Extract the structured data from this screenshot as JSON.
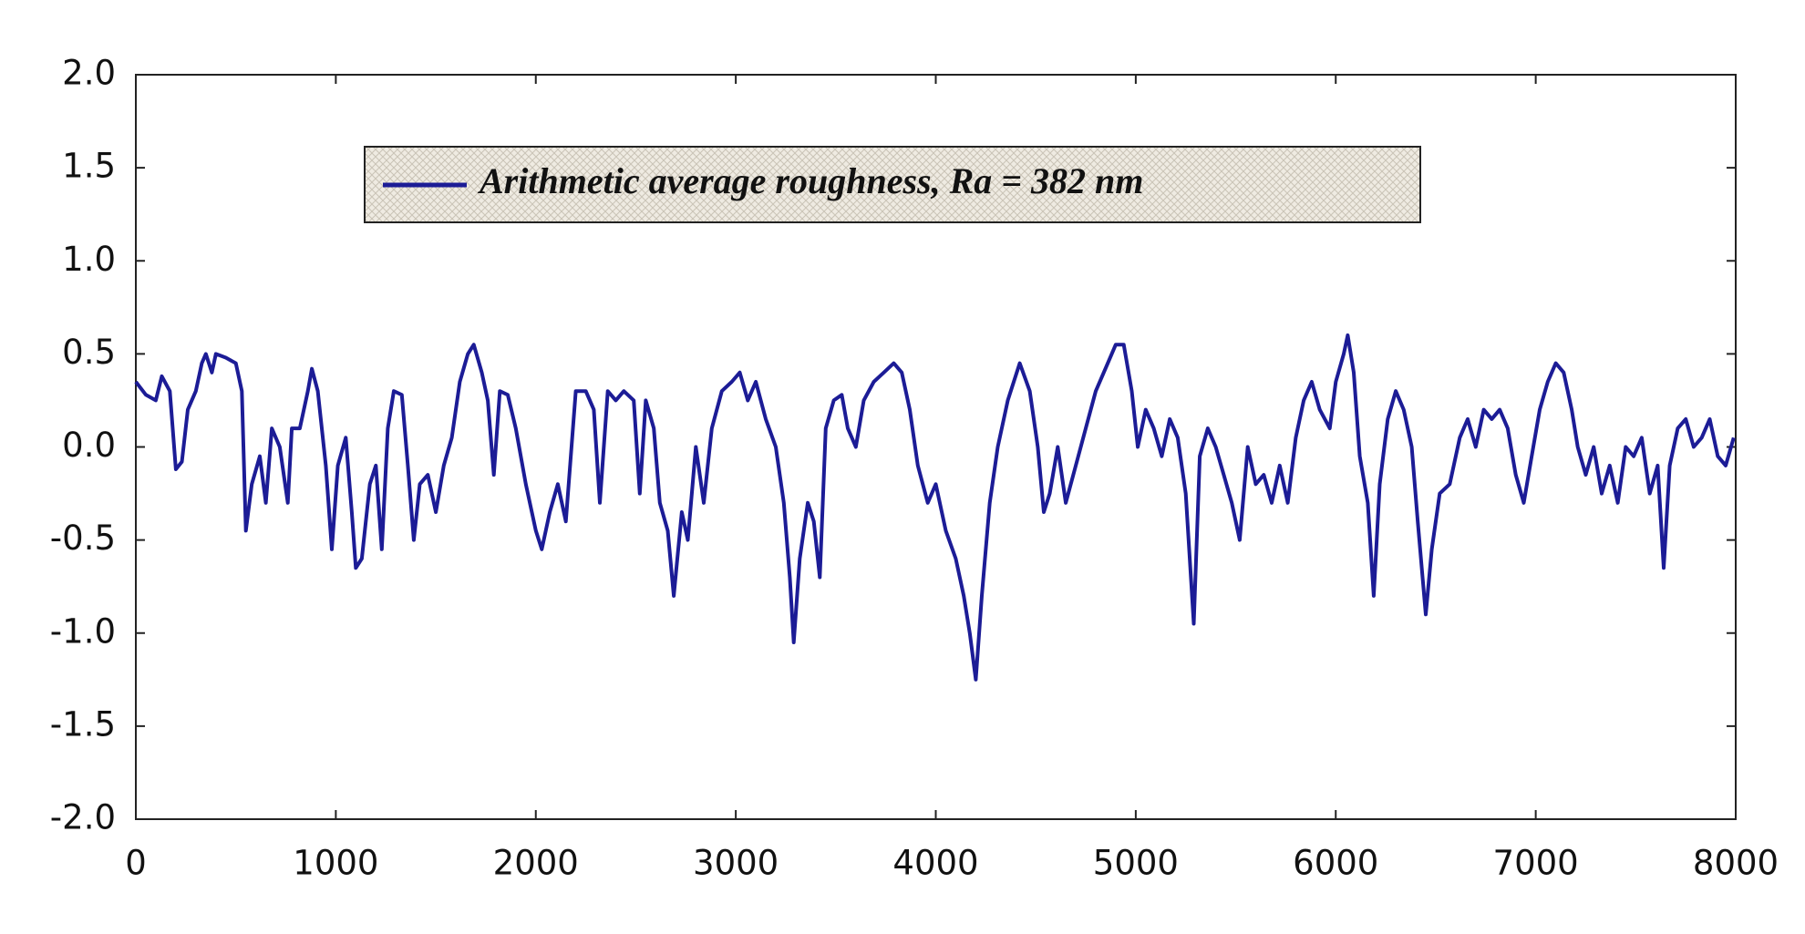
{
  "chart_data": {
    "type": "line",
    "xlim": [
      0,
      8000
    ],
    "ylim": [
      -2.0,
      2.0
    ],
    "xticks": [
      0,
      1000,
      2000,
      3000,
      4000,
      5000,
      6000,
      7000,
      8000
    ],
    "yticks": [
      {
        "value": 2.0,
        "label": "2.0"
      },
      {
        "value": 1.5,
        "label": "1.5"
      },
      {
        "value": 1.0,
        "label": "1.0"
      },
      {
        "value": 0.5,
        "label": "0.5"
      },
      {
        "value": 0.0,
        "label": "0.0"
      },
      {
        "value": -0.5,
        "label": "-0.5"
      },
      {
        "value": -1.0,
        "label": "-1.0"
      },
      {
        "value": -1.5,
        "label": "-1.5"
      },
      {
        "value": -2.0,
        "label": "-2.0"
      }
    ],
    "grid": false,
    "legend": "top",
    "x": [
      0,
      50,
      100,
      130,
      170,
      200,
      230,
      260,
      300,
      330,
      350,
      380,
      400,
      450,
      500,
      530,
      550,
      580,
      620,
      650,
      680,
      720,
      760,
      780,
      820,
      860,
      880,
      910,
      950,
      980,
      1010,
      1050,
      1080,
      1100,
      1130,
      1170,
      1200,
      1230,
      1260,
      1290,
      1330,
      1360,
      1390,
      1420,
      1460,
      1500,
      1540,
      1580,
      1620,
      1660,
      1690,
      1730,
      1760,
      1790,
      1820,
      1860,
      1900,
      1950,
      2000,
      2030,
      2070,
      2110,
      2150,
      2200,
      2250,
      2290,
      2320,
      2360,
      2400,
      2440,
      2490,
      2520,
      2550,
      2590,
      2620,
      2660,
      2690,
      2730,
      2760,
      2800,
      2840,
      2880,
      2930,
      2980,
      3020,
      3060,
      3100,
      3150,
      3200,
      3240,
      3270,
      3290,
      3320,
      3360,
      3390,
      3420,
      3450,
      3490,
      3530,
      3560,
      3600,
      3640,
      3690,
      3740,
      3790,
      3830,
      3870,
      3910,
      3960,
      4000,
      4050,
      4100,
      4140,
      4170,
      4200,
      4230,
      4270,
      4310,
      4360,
      4420,
      4470,
      4510,
      4540,
      4570,
      4610,
      4650,
      4700,
      4750,
      4800,
      4860,
      4900,
      4940,
      4980,
      5010,
      5050,
      5090,
      5130,
      5170,
      5210,
      5250,
      5290,
      5320,
      5360,
      5400,
      5440,
      5480,
      5520,
      5560,
      5600,
      5640,
      5680,
      5720,
      5760,
      5800,
      5840,
      5880,
      5920,
      5970,
      6000,
      6040,
      6060,
      6090,
      6120,
      6160,
      6190,
      6220,
      6260,
      6300,
      6340,
      6380,
      6410,
      6450,
      6480,
      6520,
      6570,
      6620,
      6660,
      6700,
      6740,
      6780,
      6820,
      6860,
      6900,
      6940,
      6980,
      7020,
      7060,
      7100,
      7140,
      7180,
      7210,
      7250,
      7290,
      7330,
      7370,
      7410,
      7450,
      7490,
      7530,
      7570,
      7610,
      7640,
      7670,
      7710,
      7750,
      7790,
      7830,
      7870,
      7910,
      7950,
      7990
    ],
    "series": [
      {
        "name": "Arithmetic average roughness, Ra = 382 nm",
        "color": "#1c1c96",
        "values": [
          0.35,
          0.28,
          0.25,
          0.38,
          0.3,
          -0.12,
          -0.08,
          0.2,
          0.3,
          0.45,
          0.5,
          0.4,
          0.5,
          0.48,
          0.45,
          0.3,
          -0.45,
          -0.2,
          -0.05,
          -0.3,
          0.1,
          0.0,
          -0.3,
          0.1,
          0.1,
          0.3,
          0.42,
          0.3,
          -0.1,
          -0.55,
          -0.1,
          0.05,
          -0.35,
          -0.65,
          -0.6,
          -0.2,
          -0.1,
          -0.55,
          0.1,
          0.3,
          0.28,
          -0.1,
          -0.5,
          -0.2,
          -0.15,
          -0.35,
          -0.1,
          0.05,
          0.35,
          0.5,
          0.55,
          0.4,
          0.25,
          -0.15,
          0.3,
          0.28,
          0.1,
          -0.2,
          -0.45,
          -0.55,
          -0.35,
          -0.2,
          -0.4,
          0.3,
          0.3,
          0.2,
          -0.3,
          0.3,
          0.25,
          0.3,
          0.25,
          -0.25,
          0.25,
          0.1,
          -0.3,
          -0.45,
          -0.8,
          -0.35,
          -0.5,
          0.0,
          -0.3,
          0.1,
          0.3,
          0.35,
          0.4,
          0.25,
          0.35,
          0.15,
          0.0,
          -0.3,
          -0.7,
          -1.05,
          -0.6,
          -0.3,
          -0.4,
          -0.7,
          0.1,
          0.25,
          0.28,
          0.1,
          0.0,
          0.25,
          0.35,
          0.4,
          0.45,
          0.4,
          0.2,
          -0.1,
          -0.3,
          -0.2,
          -0.45,
          -0.6,
          -0.8,
          -1.0,
          -1.25,
          -0.8,
          -0.3,
          0.0,
          0.25,
          0.45,
          0.3,
          0.0,
          -0.35,
          -0.25,
          0.0,
          -0.3,
          -0.1,
          0.1,
          0.3,
          0.45,
          0.55,
          0.55,
          0.3,
          0.0,
          0.2,
          0.1,
          -0.05,
          0.15,
          0.05,
          -0.25,
          -0.95,
          -0.05,
          0.1,
          0.0,
          -0.15,
          -0.3,
          -0.5,
          0.0,
          -0.2,
          -0.15,
          -0.3,
          -0.1,
          -0.3,
          0.05,
          0.25,
          0.35,
          0.2,
          0.1,
          0.35,
          0.5,
          0.6,
          0.4,
          -0.05,
          -0.3,
          -0.8,
          -0.2,
          0.15,
          0.3,
          0.2,
          0.0,
          -0.4,
          -0.9,
          -0.55,
          -0.25,
          -0.2,
          0.05,
          0.15,
          0.0,
          0.2,
          0.15,
          0.2,
          0.1,
          -0.15,
          -0.3,
          -0.05,
          0.2,
          0.35,
          0.45,
          0.4,
          0.2,
          0.0,
          -0.15,
          0.0,
          -0.25,
          -0.1,
          -0.3,
          0.0,
          -0.05,
          0.05,
          -0.25,
          -0.1,
          -0.65,
          -0.1,
          0.1,
          0.15,
          0.0,
          0.05,
          0.15,
          -0.05,
          -0.1,
          0.05
        ]
      }
    ]
  }
}
